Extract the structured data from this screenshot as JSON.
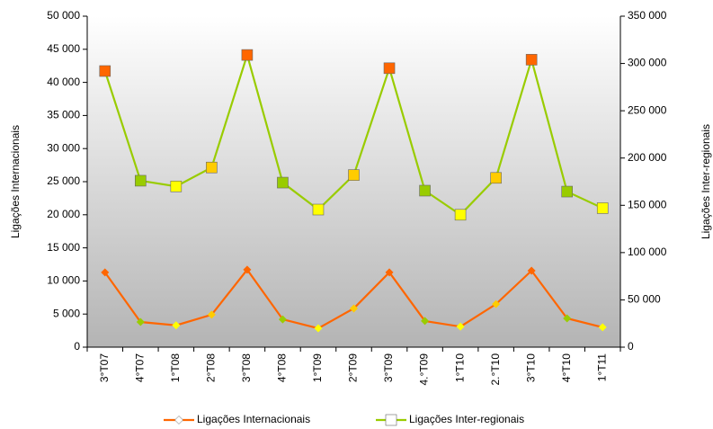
{
  "chart_data": {
    "type": "line",
    "categories": [
      "3°T07",
      "4°T07",
      "1°T08",
      "2°T08",
      "3°T08",
      "4°T08",
      "1°T09",
      "2°T09",
      "3°T09",
      "4.°T09",
      "1°T10",
      "2.°T10",
      "3°T10",
      "4°T10",
      "1°T11"
    ],
    "series": [
      {
        "name": "Ligações Internacionais",
        "color": "#ff6600",
        "marker": "diamond",
        "marker_colors": [
          "#ff6600",
          "#99cc00",
          "#ffff00",
          "#ffcc00",
          "#ff6600",
          "#99cc00",
          "#ffff00",
          "#ffcc00",
          "#ff6600",
          "#99cc00",
          "#ffff00",
          "#ffcc00",
          "#ff6600",
          "#99cc00",
          "#ffff00"
        ],
        "values": [
          11300,
          3800,
          3300,
          4900,
          11700,
          4200,
          2850,
          5850,
          11300,
          3950,
          3100,
          6500,
          11550,
          4350,
          3000
        ]
      },
      {
        "name": "Ligações Inter-regionais",
        "color": "#99cc00",
        "marker": "square",
        "axis": "y2",
        "marker_colors": [
          "#ff6600",
          "#99cc00",
          "#ffff00",
          "#ffcc00",
          "#ff6600",
          "#99cc00",
          "#ffff00",
          "#ffcc00",
          "#ff6600",
          "#99cc00",
          "#ffff00",
          "#ffcc00",
          "#ff6600",
          "#99cc00",
          "#ffff00"
        ],
        "values": [
          292000,
          176000,
          170000,
          190000,
          309000,
          174000,
          145500,
          182000,
          295000,
          165500,
          140000,
          179000,
          304000,
          164500,
          147000
        ]
      }
    ],
    "ylabel": "Ligações Internacionais",
    "y2label": "Ligações Inter-regionais",
    "ylim": [
      0,
      50000
    ],
    "yticks": [
      0,
      {
        "value": 5000,
        "label": "5 000"
      },
      {
        "value": 10000,
        "label": "10 000"
      },
      {
        "value": 15000,
        "label": "15 000"
      },
      {
        "value": 20000,
        "label": "20 000"
      },
      {
        "value": 25000,
        "label": "25 000"
      },
      {
        "value": 30000,
        "label": "30 000"
      },
      {
        "value": 35000,
        "label": "35 000"
      },
      {
        "value": 40000,
        "label": "40 000"
      },
      {
        "value": 45000,
        "label": "45 000"
      },
      {
        "value": 50000,
        "label": "50 000"
      }
    ],
    "y2lim": [
      0,
      350000
    ],
    "y2ticks": [
      0,
      {
        "value": 50000,
        "label": "50 000"
      },
      {
        "value": 100000,
        "label": "100 000"
      },
      {
        "value": 150000,
        "label": "150 000"
      },
      {
        "value": 200000,
        "label": "200 000"
      },
      {
        "value": 250000,
        "label": "250 000"
      },
      {
        "value": 300000,
        "label": "300 000"
      },
      {
        "value": 350000,
        "label": "350 000"
      }
    ],
    "legend": "bottom"
  }
}
